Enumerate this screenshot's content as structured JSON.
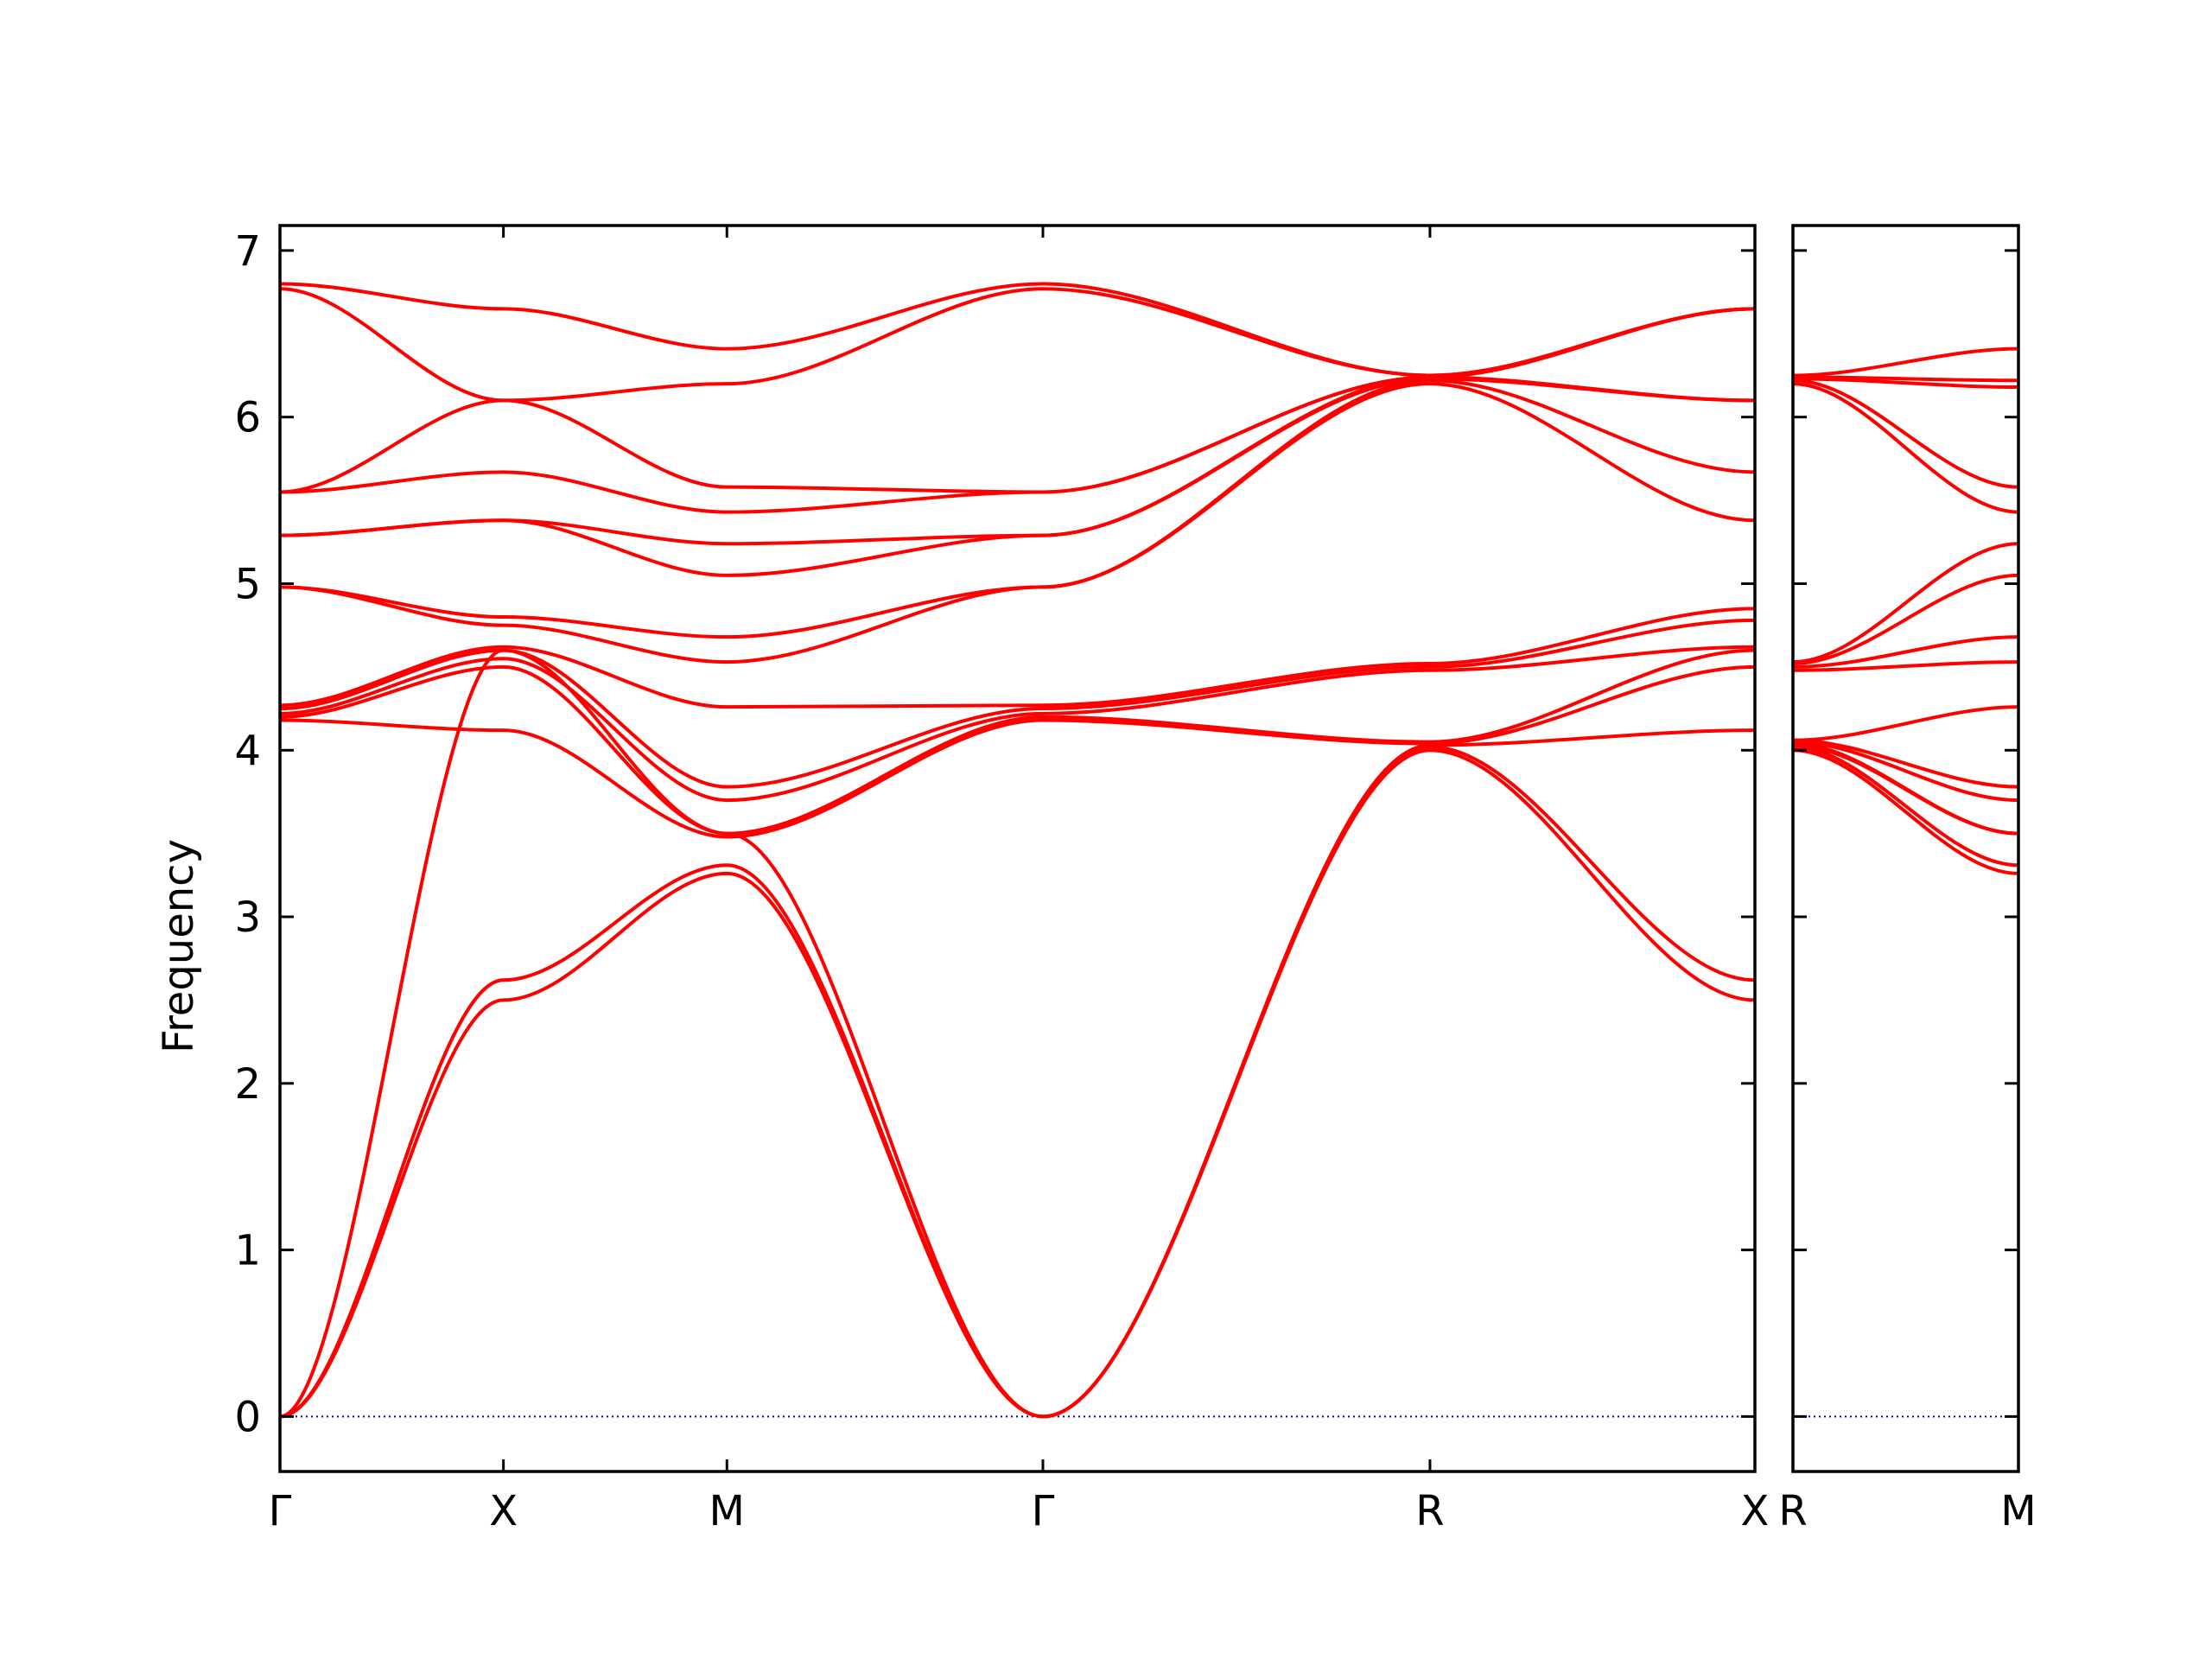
{
  "chart_data": {
    "type": "line",
    "ylabel": "Frequency",
    "ylim": [
      -0.33,
      7.15
    ],
    "yticks": [
      0,
      1,
      2,
      3,
      4,
      5,
      6,
      7
    ],
    "grid": false,
    "line_color": "#ff0000",
    "zero_line_color": "#0000aa",
    "panels": [
      {
        "id": "main",
        "xlim": [
          0,
          6.6
        ],
        "ticks": [
          {
            "label": "Γ",
            "x": 0
          },
          {
            "label": "X",
            "x": 1
          },
          {
            "label": "M",
            "x": 2
          },
          {
            "label": "Γ",
            "x": 3.414
          },
          {
            "label": "R",
            "x": 5.146
          },
          {
            "label": "X",
            "x": 6.6
          }
        ],
        "branches": [
          {
            "name": "",
            "x": [
              0,
              1,
              2,
              3.414,
              5.146,
              6.6
            ],
            "y": [
              0.0,
              2.5,
              3.26,
              0.0,
              4.0,
              2.5
            ]
          },
          {
            "name": "",
            "x": [
              0,
              1,
              2,
              3.414,
              5.146,
              6.6
            ],
            "y": [
              0.0,
              2.62,
              3.31,
              0.0,
              4.02,
              2.62
            ]
          },
          {
            "name": "",
            "x": [
              0,
              1,
              2,
              3.414,
              5.146,
              6.6
            ],
            "y": [
              0.0,
              4.6,
              3.5,
              0.0,
              4.03,
              4.12
            ]
          },
          {
            "name": "",
            "x": [
              0,
              1,
              2,
              3.414,
              5.146,
              6.6
            ],
            "y": [
              4.18,
              4.12,
              3.48,
              4.18,
              4.04,
              4.5
            ]
          },
          {
            "name": "",
            "x": [
              0,
              1,
              2,
              3.414,
              5.146,
              6.6
            ],
            "y": [
              4.2,
              4.5,
              3.5,
              4.2,
              4.05,
              4.6
            ]
          },
          {
            "name": "",
            "x": [
              0,
              1,
              2,
              3.414,
              5.146,
              6.6
            ],
            "y": [
              4.22,
              4.55,
              3.7,
              4.22,
              4.48,
              4.62
            ]
          },
          {
            "name": "",
            "x": [
              0,
              1,
              2,
              3.414,
              5.146,
              6.6
            ],
            "y": [
              4.25,
              4.6,
              3.78,
              4.25,
              4.5,
              4.78
            ]
          },
          {
            "name": "",
            "x": [
              0,
              1,
              2,
              3.414,
              5.146,
              6.6
            ],
            "y": [
              4.27,
              4.62,
              4.26,
              4.27,
              4.52,
              4.85
            ]
          },
          {
            "name": "",
            "x": [
              0,
              1,
              2,
              3.414,
              5.146,
              6.6
            ],
            "y": [
              4.98,
              4.75,
              4.53,
              4.98,
              6.2,
              5.38
            ]
          },
          {
            "name": "",
            "x": [
              0,
              1,
              2,
              3.414,
              5.146,
              6.6
            ],
            "y": [
              4.98,
              4.8,
              4.68,
              4.98,
              6.22,
              5.67
            ]
          },
          {
            "name": "",
            "x": [
              0,
              1,
              2,
              3.414,
              5.146,
              6.6
            ],
            "y": [
              5.29,
              5.38,
              5.05,
              5.29,
              6.23,
              6.1
            ]
          },
          {
            "name": "",
            "x": [
              0,
              1,
              2,
              3.414,
              5.146,
              6.6
            ],
            "y": [
              5.29,
              5.38,
              5.24,
              5.29,
              6.24,
              6.1
            ]
          },
          {
            "name": "",
            "x": [
              0,
              1,
              2,
              3.414,
              5.146,
              6.6
            ],
            "y": [
              5.55,
              5.67,
              5.43,
              5.55,
              6.24,
              6.65
            ]
          },
          {
            "name": "",
            "x": [
              0,
              1,
              2,
              3.414,
              5.146,
              6.6
            ],
            "y": [
              5.55,
              6.1,
              5.58,
              5.55,
              6.24,
              6.65
            ]
          },
          {
            "name": "",
            "x": [
              0,
              1,
              2,
              3.414,
              5.146,
              6.6
            ],
            "y": [
              6.77,
              6.1,
              6.2,
              6.77,
              6.25,
              6.65
            ]
          },
          {
            "name": "",
            "x": [
              0,
              1,
              2,
              3.414,
              5.146,
              6.6
            ],
            "y": [
              6.8,
              6.65,
              6.41,
              6.8,
              6.25,
              6.65
            ]
          }
        ]
      },
      {
        "id": "side",
        "xlim": [
          0,
          1
        ],
        "ticks": [
          {
            "label": "R",
            "x": 0
          },
          {
            "label": "M",
            "x": 1
          }
        ],
        "branches": [
          {
            "name": "",
            "x": [
              0,
              1
            ],
            "y": [
              4.0,
              3.26
            ]
          },
          {
            "name": "",
            "x": [
              0,
              1
            ],
            "y": [
              4.02,
              3.31
            ]
          },
          {
            "name": "",
            "x": [
              0,
              1
            ],
            "y": [
              4.03,
              3.5
            ]
          },
          {
            "name": "",
            "x": [
              0,
              1
            ],
            "y": [
              4.04,
              3.5
            ]
          },
          {
            "name": "",
            "x": [
              0,
              1
            ],
            "y": [
              4.05,
              3.7
            ]
          },
          {
            "name": "",
            "x": [
              0,
              1
            ],
            "y": [
              4.06,
              3.78
            ]
          },
          {
            "name": "",
            "x": [
              0,
              1
            ],
            "y": [
              4.06,
              4.26
            ]
          },
          {
            "name": "",
            "x": [
              0,
              1
            ],
            "y": [
              4.48,
              4.53
            ]
          },
          {
            "name": "",
            "x": [
              0,
              1
            ],
            "y": [
              4.5,
              4.68
            ]
          },
          {
            "name": "",
            "x": [
              0,
              1
            ],
            "y": [
              4.52,
              5.05
            ]
          },
          {
            "name": "",
            "x": [
              0,
              1
            ],
            "y": [
              4.53,
              5.24
            ]
          },
          {
            "name": "",
            "x": [
              0,
              1
            ],
            "y": [
              6.2,
              5.43
            ]
          },
          {
            "name": "",
            "x": [
              0,
              1
            ],
            "y": [
              6.22,
              5.58
            ]
          },
          {
            "name": "",
            "x": [
              0,
              1
            ],
            "y": [
              6.23,
              6.18
            ]
          },
          {
            "name": "",
            "x": [
              0,
              1
            ],
            "y": [
              6.24,
              6.22
            ]
          },
          {
            "name": "",
            "x": [
              0,
              1
            ],
            "y": [
              6.25,
              6.41
            ]
          }
        ]
      }
    ]
  }
}
